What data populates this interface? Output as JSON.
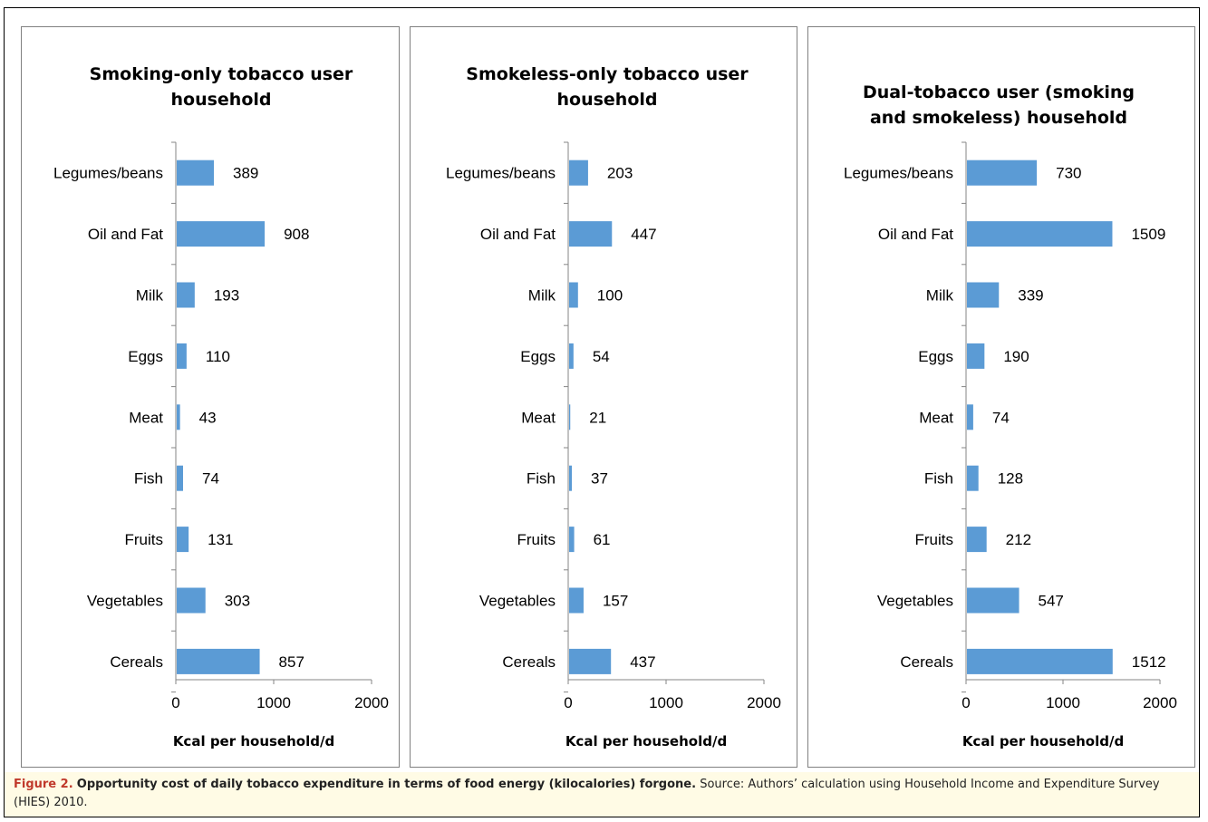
{
  "chart_data": [
    {
      "type": "bar",
      "orientation": "horizontal",
      "title_lines": [
        "Smoking-only tobacco user",
        "household"
      ],
      "categories": [
        "Legumes/beans",
        "Oil and Fat",
        "Milk",
        "Eggs",
        "Meat",
        "Fish",
        "Fruits",
        "Vegetables",
        "Cereals"
      ],
      "values": [
        389,
        908,
        193,
        110,
        43,
        74,
        131,
        303,
        857
      ],
      "xlabel": "Kcal per household/d",
      "xlim": [
        0,
        2000
      ],
      "xticks": [
        "0",
        "1000",
        "2000"
      ],
      "grid": false,
      "bar_color": "#5b9bd5"
    },
    {
      "type": "bar",
      "orientation": "horizontal",
      "title_lines": [
        "Smokeless-only tobacco user",
        "household"
      ],
      "categories": [
        "Legumes/beans",
        "Oil and Fat",
        "Milk",
        "Eggs",
        "Meat",
        "Fish",
        "Fruits",
        "Vegetables",
        "Cereals"
      ],
      "values": [
        203,
        447,
        100,
        54,
        21,
        37,
        61,
        157,
        437
      ],
      "xlabel": "Kcal per household/d",
      "xlim": [
        0,
        2000
      ],
      "xticks": [
        "0",
        "1000",
        "2000"
      ],
      "grid": false,
      "bar_color": "#5b9bd5"
    },
    {
      "type": "bar",
      "orientation": "horizontal",
      "title_lines": [
        "Dual-tobacco user (smoking",
        "and smokeless) household"
      ],
      "categories": [
        "Legumes/beans",
        "Oil and Fat",
        "Milk",
        "Eggs",
        "Meat",
        "Fish",
        "Fruits",
        "Vegetables",
        "Cereals"
      ],
      "values": [
        730,
        1509,
        339,
        190,
        74,
        128,
        212,
        547,
        1512
      ],
      "xlabel": "Kcal per household/d",
      "xlim": [
        0,
        2000
      ],
      "xticks": [
        "0",
        "1000",
        "2000"
      ],
      "grid": false,
      "bar_color": "#5b9bd5"
    }
  ],
  "caption": {
    "label": "Figure 2.",
    "bold_text": "Opportunity cost of daily tobacco expenditure in terms of food energy (kilocalories) forgone.",
    "text": "Source: Authors’ calculation using Household Income and Expenditure Survey (HIES) 2010.",
    "label_color": "#c0392b"
  }
}
